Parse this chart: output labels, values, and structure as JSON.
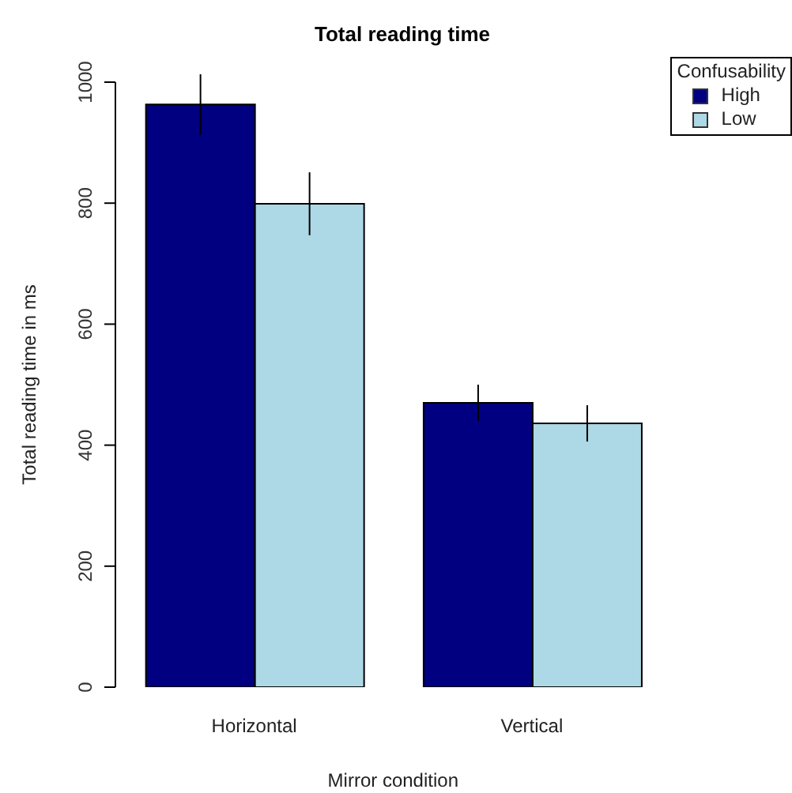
{
  "chart_data": {
    "type": "bar",
    "title": "Total reading time",
    "xlabel": "Mirror condition",
    "ylabel": "Total reading time in ms",
    "legend_title": "Confusability",
    "categories": [
      "Horizontal",
      "Vertical"
    ],
    "series": [
      {
        "name": "High",
        "color": "#000080",
        "values": [
          963,
          470
        ],
        "errors": [
          50,
          30
        ]
      },
      {
        "name": "Low",
        "color": "#add8e6",
        "values": [
          799,
          436
        ],
        "errors": [
          52,
          30
        ]
      }
    ],
    "ylim": [
      0,
      1000
    ],
    "yticks": [
      0,
      200,
      400,
      600,
      800,
      1000
    ],
    "grid": false,
    "legend": "top right"
  }
}
